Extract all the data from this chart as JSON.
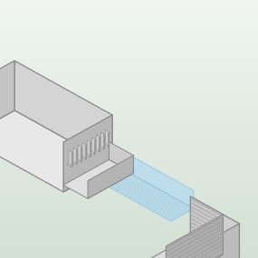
{
  "bg_color": "#e8ede8",
  "box_front": "#d4d4d4",
  "box_top": "#e8e8e8",
  "box_right": "#b8b8b8",
  "box_edge": "#888888",
  "beam_fill": "#b8dcf0",
  "beam_edge": "#80b8d8",
  "beam_line": "#90c0d8",
  "cyl_color": "#c0c0c0",
  "lead_front": "#d0d0d0",
  "lead_right": "#b0b0b0",
  "lead_top": "#e0e0e0",
  "ridge_color": "#a8a8a8",
  "chip_front": "#cccccc",
  "chip_top": "#e0e0e0",
  "chip_right": "#b4b4b4",
  "receiver_front": "#d0d0d0",
  "receiver_top": "#e4e4e4",
  "receiver_right": "#bcbcbc",
  "receiver_sub_front": "#c8c8c8",
  "receiver_sub_top": "#dcdcdc",
  "receiver_sub_right": "#b0b0b0"
}
